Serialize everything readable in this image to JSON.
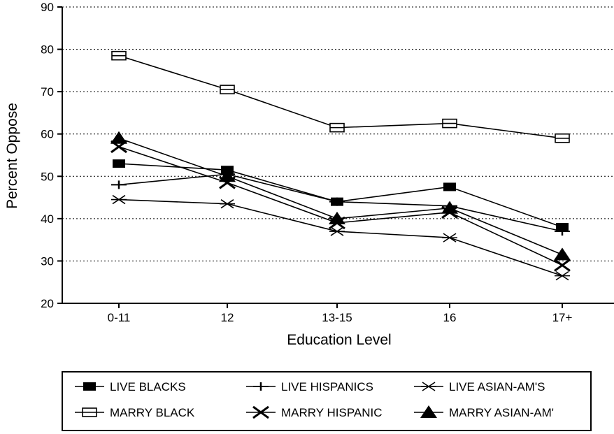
{
  "chart_data": {
    "type": "line",
    "xlabel": "Education Level",
    "ylabel": "Percent Oppose",
    "categories": [
      "0-11",
      "12",
      "13-15",
      "16",
      "17+"
    ],
    "ylim": [
      20,
      90
    ],
    "yticks": [
      20,
      30,
      40,
      50,
      60,
      70,
      80,
      90
    ],
    "grid": "horizontal dotted",
    "legend_position": "bottom",
    "series": [
      {
        "name": "LIVE BLACKS",
        "marker": "filled-square",
        "values": [
          53,
          51.5,
          44,
          47.5,
          38
        ]
      },
      {
        "name": "LIVE HISPANICS",
        "marker": "plus",
        "values": [
          48,
          50.5,
          44,
          43,
          37
        ]
      },
      {
        "name": "LIVE ASIAN-AM'S",
        "marker": "asterisk",
        "values": [
          44.5,
          43.5,
          37,
          35.5,
          26.5
        ]
      },
      {
        "name": "MARRY BLACK",
        "marker": "open-square",
        "values": [
          78.5,
          70.5,
          61.5,
          62.5,
          59
        ]
      },
      {
        "name": "MARRY HISPANIC",
        "marker": "x",
        "values": [
          57,
          48.5,
          39,
          41.5,
          29
        ]
      },
      {
        "name": "MARRY ASIAN-AM'",
        "marker": "filled-triangle",
        "values": [
          59,
          50,
          40,
          42.5,
          31.5
        ]
      }
    ]
  }
}
